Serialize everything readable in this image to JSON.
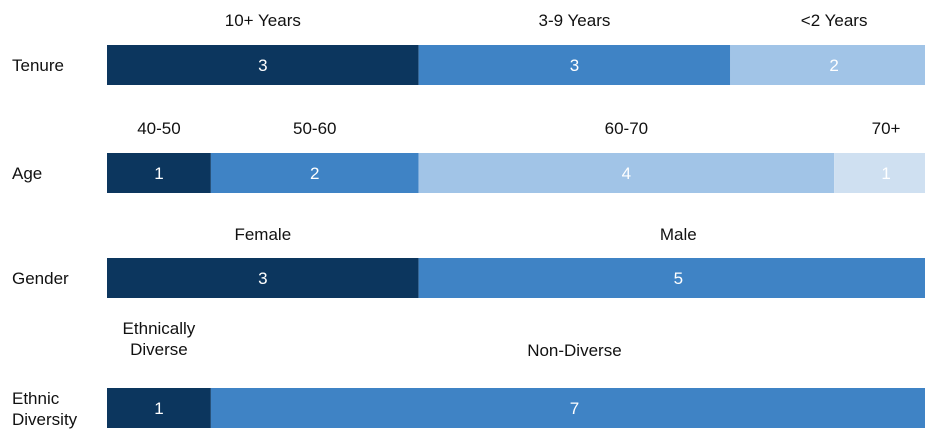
{
  "chart_data": {
    "type": "bar",
    "subtype": "stacked-horizontal-100",
    "legend": "none",
    "grid": false,
    "colors": [
      "#0c365e",
      "#3f83c5",
      "#a1c4e7",
      "#cfe0f1"
    ],
    "value_label_colors": [
      "#ffffff",
      "#ffffff",
      "#ffffff",
      "#ffffff"
    ],
    "rows": [
      {
        "label": "Tenure",
        "segments": [
          {
            "category": "10+ Years",
            "value": 3
          },
          {
            "category": "3-9 Years",
            "value": 3
          },
          {
            "category": "<2 Years",
            "value": 2
          }
        ]
      },
      {
        "label": "Age",
        "segments": [
          {
            "category": "40-50",
            "value": 1
          },
          {
            "category": "50-60",
            "value": 2
          },
          {
            "category": "60-70",
            "value": 4
          },
          {
            "category": "70+",
            "value": 1
          }
        ]
      },
      {
        "label": "Gender",
        "segments": [
          {
            "category": "Female",
            "value": 3
          },
          {
            "category": "Male",
            "value": 5
          }
        ]
      },
      {
        "label": "Ethnic Diversity",
        "segments": [
          {
            "category": "Ethnically Diverse",
            "value": 1
          },
          {
            "category": "Non-Diverse",
            "value": 7
          }
        ]
      }
    ]
  }
}
